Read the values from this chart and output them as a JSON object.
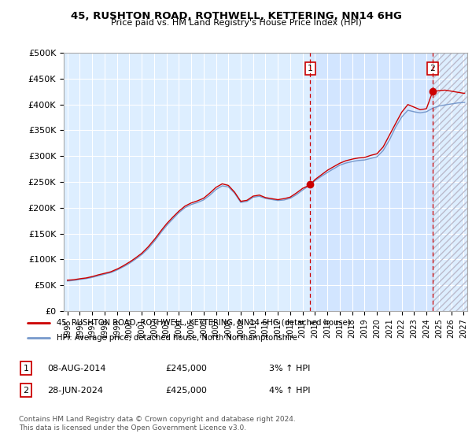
{
  "title": "45, RUSHTON ROAD, ROTHWELL, KETTERING, NN14 6HG",
  "subtitle": "Price paid vs. HM Land Registry's House Price Index (HPI)",
  "ylabel_ticks": [
    0,
    50000,
    100000,
    150000,
    200000,
    250000,
    300000,
    350000,
    400000,
    450000,
    500000
  ],
  "ylabel_labels": [
    "£0",
    "£50K",
    "£100K",
    "£150K",
    "£200K",
    "£250K",
    "£300K",
    "£350K",
    "£400K",
    "£450K",
    "£500K"
  ],
  "ylim": [
    0,
    500000
  ],
  "hpi_color": "#7799cc",
  "price_color": "#cc0000",
  "bg_color": "#ddeeff",
  "grid_color": "#ffffff",
  "highlight_color": "#cce0ff",
  "transaction1_year": 2014.62,
  "transaction1_price": 245000,
  "transaction1_label": "1",
  "transaction2_year": 2024.5,
  "transaction2_price": 425000,
  "transaction2_label": "2",
  "legend_line1": "45, RUSHTON ROAD, ROTHWELL, KETTERING, NN14 6HG (detached house)",
  "legend_line2": "HPI: Average price, detached house, North Northamptonshire",
  "table_row1": [
    "1",
    "08-AUG-2014",
    "£245,000",
    "3% ↑ HPI"
  ],
  "table_row2": [
    "2",
    "28-JUN-2024",
    "£425,000",
    "4% ↑ HPI"
  ],
  "footer": "Contains HM Land Registry data © Crown copyright and database right 2024.\nThis data is licensed under the Open Government Licence v3.0.",
  "hatch_start_year": 2024.5,
  "xtick_years": [
    1995,
    1996,
    1997,
    1998,
    1999,
    2000,
    2001,
    2002,
    2003,
    2004,
    2005,
    2006,
    2007,
    2008,
    2009,
    2010,
    2011,
    2012,
    2013,
    2014,
    2015,
    2016,
    2017,
    2018,
    2019,
    2020,
    2021,
    2022,
    2023,
    2024,
    2025,
    2026,
    2027
  ],
  "xlim_left": 1994.7,
  "xlim_right": 2027.3
}
